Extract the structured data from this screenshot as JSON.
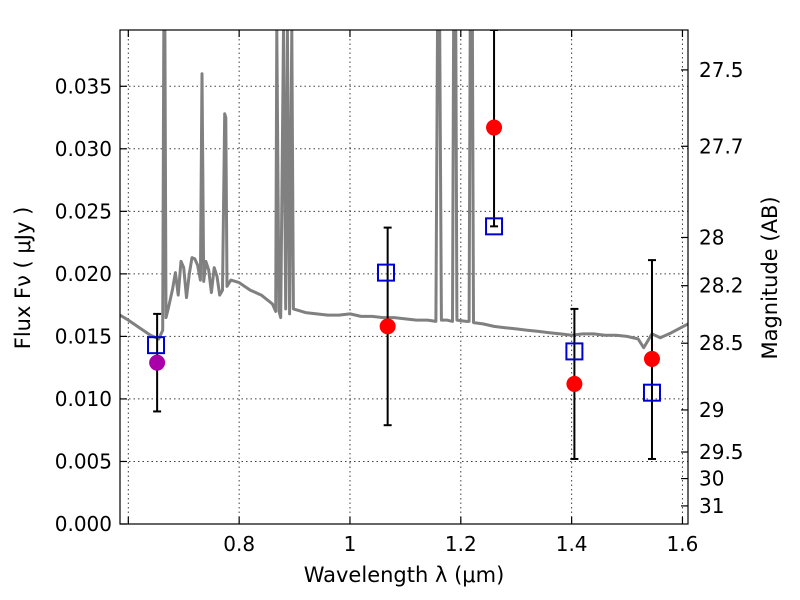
{
  "chart_data": {
    "type": "scatter",
    "xlabel": "Wavelength  λ (μm)",
    "ylabel": "Flux  Fν  ( μJy )",
    "y2label": "Magnitude (AB)",
    "xlim": [
      0.585,
      1.61
    ],
    "ylim": [
      0.0,
      0.0395
    ],
    "grid": true,
    "x_ticks": [
      {
        "value": 0.6,
        "label": ""
      },
      {
        "value": 0.8,
        "label": "0.8"
      },
      {
        "value": 1.0,
        "label": "1"
      },
      {
        "value": 1.2,
        "label": "1.2"
      },
      {
        "value": 1.4,
        "label": "1.4"
      },
      {
        "value": 1.6,
        "label": "1.6"
      }
    ],
    "y_ticks": [
      {
        "value": 0.0,
        "label": "0.000"
      },
      {
        "value": 0.005,
        "label": "0.005"
      },
      {
        "value": 0.01,
        "label": "0.010"
      },
      {
        "value": 0.015,
        "label": "0.015"
      },
      {
        "value": 0.02,
        "label": "0.020"
      },
      {
        "value": 0.025,
        "label": "0.025"
      },
      {
        "value": 0.03,
        "label": "0.030"
      },
      {
        "value": 0.035,
        "label": "0.035"
      }
    ],
    "y2_ticks": [
      {
        "value": 27.5,
        "label": "27.5"
      },
      {
        "value": 27.7,
        "label": "27.7"
      },
      {
        "value": 28.0,
        "label": "28"
      },
      {
        "value": 28.2,
        "label": "28.2"
      },
      {
        "value": 28.5,
        "label": "28.5"
      },
      {
        "value": 29.0,
        "label": "29"
      },
      {
        "value": 29.5,
        "label": "29.5"
      },
      {
        "value": 30.0,
        "label": "30"
      },
      {
        "value": 31.0,
        "label": "31"
      }
    ],
    "colors": {
      "model": "#808080",
      "observed": "#ff0000",
      "observed_first": "#aa00aa",
      "model_photometry": "#0000cc",
      "errorbar": "#000000"
    },
    "series": [
      {
        "kind": "line",
        "points": [
          [
            0.585,
            0.0167
          ],
          [
            0.6,
            0.0163
          ],
          [
            0.62,
            0.0157
          ],
          [
            0.64,
            0.0151
          ],
          [
            0.655,
            0.0148
          ],
          [
            0.662,
            0.0155
          ],
          [
            0.664,
            0.0395
          ],
          [
            0.666,
            0.0395
          ],
          [
            0.668,
            0.0165
          ],
          [
            0.672,
            0.0172
          ],
          [
            0.68,
            0.0188
          ],
          [
            0.685,
            0.0201
          ],
          [
            0.69,
            0.0183
          ],
          [
            0.695,
            0.021
          ],
          [
            0.7,
            0.0205
          ],
          [
            0.705,
            0.0181
          ],
          [
            0.71,
            0.02
          ],
          [
            0.715,
            0.0213
          ],
          [
            0.72,
            0.0212
          ],
          [
            0.725,
            0.0207
          ],
          [
            0.73,
            0.0195
          ],
          [
            0.733,
            0.036
          ],
          [
            0.736,
            0.0194
          ],
          [
            0.74,
            0.021
          ],
          [
            0.745,
            0.0203
          ],
          [
            0.75,
            0.0185
          ],
          [
            0.755,
            0.0205
          ],
          [
            0.76,
            0.0198
          ],
          [
            0.765,
            0.0183
          ],
          [
            0.77,
            0.0187
          ],
          [
            0.774,
            0.0328
          ],
          [
            0.776,
            0.0325
          ],
          [
            0.778,
            0.019
          ],
          [
            0.785,
            0.0195
          ],
          [
            0.8,
            0.0193
          ],
          [
            0.82,
            0.0187
          ],
          [
            0.84,
            0.0183
          ],
          [
            0.86,
            0.0176
          ],
          [
            0.866,
            0.017
          ],
          [
            0.868,
            0.0395
          ],
          [
            0.872,
            0.017
          ],
          [
            0.875,
            0.0165
          ],
          [
            0.88,
            0.0395
          ],
          [
            0.884,
            0.0172
          ],
          [
            0.887,
            0.0395
          ],
          [
            0.891,
            0.0168
          ],
          [
            0.895,
            0.0395
          ],
          [
            0.898,
            0.0172
          ],
          [
            0.92,
            0.0169
          ],
          [
            0.94,
            0.0168
          ],
          [
            0.96,
            0.0167
          ],
          [
            0.98,
            0.0167
          ],
          [
            1.0,
            0.0168
          ],
          [
            1.02,
            0.0166
          ],
          [
            1.04,
            0.0166
          ],
          [
            1.06,
            0.0165
          ],
          [
            1.08,
            0.0165
          ],
          [
            1.1,
            0.0164
          ],
          [
            1.12,
            0.0163
          ],
          [
            1.14,
            0.0163
          ],
          [
            1.155,
            0.0162
          ],
          [
            1.158,
            0.0395
          ],
          [
            1.162,
            0.0395
          ],
          [
            1.165,
            0.0163
          ],
          [
            1.175,
            0.0163
          ],
          [
            1.185,
            0.0162
          ],
          [
            1.187,
            0.0395
          ],
          [
            1.191,
            0.0395
          ],
          [
            1.193,
            0.0163
          ],
          [
            1.21,
            0.0162
          ],
          [
            1.215,
            0.0162
          ],
          [
            1.217,
            0.0395
          ],
          [
            1.221,
            0.0395
          ],
          [
            1.223,
            0.0161
          ],
          [
            1.24,
            0.016
          ],
          [
            1.26,
            0.0158
          ],
          [
            1.28,
            0.0157
          ],
          [
            1.3,
            0.0156
          ],
          [
            1.32,
            0.0155
          ],
          [
            1.34,
            0.0154
          ],
          [
            1.36,
            0.0153
          ],
          [
            1.38,
            0.0152
          ],
          [
            1.4,
            0.0151
          ],
          [
            1.42,
            0.0152
          ],
          [
            1.44,
            0.0152
          ],
          [
            1.46,
            0.0151
          ],
          [
            1.48,
            0.0151
          ],
          [
            1.5,
            0.015
          ],
          [
            1.52,
            0.0148
          ],
          [
            1.53,
            0.0141
          ],
          [
            1.545,
            0.0152
          ],
          [
            1.56,
            0.0149
          ],
          [
            1.58,
            0.0153
          ],
          [
            1.61,
            0.016
          ]
        ]
      },
      {
        "kind": "points_with_errorbars",
        "points": [
          {
            "x": 0.652,
            "y": 0.0129,
            "yerr_low": 0.009,
            "yerr_high": 0.0168
          },
          {
            "x": 1.068,
            "y": 0.0158,
            "yerr_low": 0.0079,
            "yerr_high": 0.0237
          },
          {
            "x": 1.26,
            "y": 0.0317,
            "yerr_low": 0.0238,
            "yerr_high": 0.0395
          },
          {
            "x": 1.405,
            "y": 0.0112,
            "yerr_low": 0.0052,
            "yerr_high": 0.0172
          },
          {
            "x": 1.545,
            "y": 0.0132,
            "yerr_low": 0.0052,
            "yerr_high": 0.0211
          }
        ]
      },
      {
        "kind": "squares",
        "points": [
          {
            "x": 0.65,
            "y": 0.0143
          },
          {
            "x": 1.065,
            "y": 0.0201
          },
          {
            "x": 1.26,
            "y": 0.0238
          },
          {
            "x": 1.405,
            "y": 0.0138
          },
          {
            "x": 1.545,
            "y": 0.0105
          }
        ]
      }
    ]
  }
}
